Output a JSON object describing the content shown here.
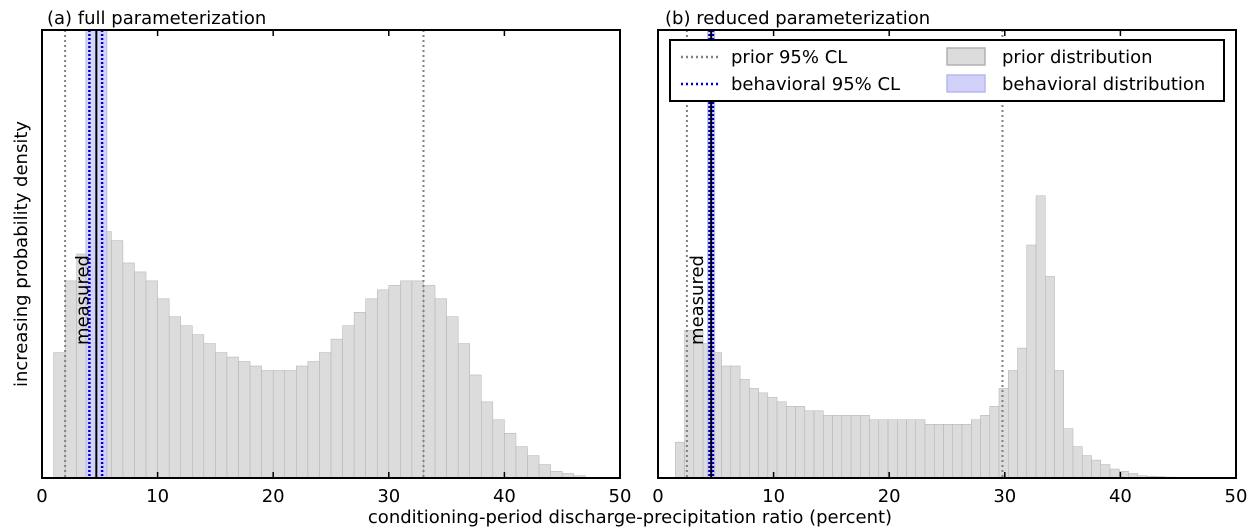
{
  "figure": {
    "ylabel": "increasing probability density",
    "xlabel": "conditioning-period discharge-precipitation ratio (percent)"
  },
  "legend": {
    "items": [
      {
        "label": "prior 95% CL",
        "kind": "line",
        "color": "#808080",
        "style": "dotted"
      },
      {
        "label": "prior distribution",
        "kind": "patch",
        "color": "#dcdcdc",
        "edge": "#b0b0b0"
      },
      {
        "label": "behavioral 95% CL",
        "kind": "line",
        "color": "#0000cc",
        "style": "dotted"
      },
      {
        "label": "behavioral distribution",
        "kind": "patch",
        "color": "#d0d0f8",
        "edge": "#b8b8f0"
      }
    ]
  },
  "chart_data": [
    {
      "type": "bar",
      "title": "(a) full parameterization",
      "xlim": [
        0,
        50
      ],
      "xticks": [
        0,
        10,
        20,
        30,
        40,
        50
      ],
      "ylim": [
        0,
        1.0
      ],
      "bin_start": 1,
      "bin_width": 1,
      "prior_values": [
        0.28,
        0.44,
        0.5,
        0.53,
        0.55,
        0.53,
        0.48,
        0.46,
        0.44,
        0.4,
        0.36,
        0.34,
        0.32,
        0.3,
        0.28,
        0.27,
        0.26,
        0.25,
        0.24,
        0.24,
        0.24,
        0.25,
        0.26,
        0.28,
        0.31,
        0.34,
        0.37,
        0.4,
        0.42,
        0.43,
        0.44,
        0.44,
        0.43,
        0.4,
        0.36,
        0.3,
        0.23,
        0.17,
        0.13,
        0.1,
        0.07,
        0.05,
        0.03,
        0.015,
        0.01,
        0.005
      ],
      "prior_cl": [
        2.0,
        33.0
      ],
      "behavioral_band": [
        3.8,
        5.6
      ],
      "behavioral_cl": [
        4.1,
        5.2
      ],
      "measured": 4.7,
      "measured_label": "measured"
    },
    {
      "type": "bar",
      "title": "(b) reduced parameterization",
      "xlim": [
        0,
        50
      ],
      "xticks": [
        0,
        10,
        20,
        30,
        40,
        50
      ],
      "ylim": [
        0,
        1.0
      ],
      "bin_start": 1.5,
      "bin_width": 0.8,
      "prior_values": [
        0.08,
        0.33,
        0.33,
        0.3,
        0.28,
        0.25,
        0.25,
        0.22,
        0.2,
        0.19,
        0.18,
        0.17,
        0.16,
        0.16,
        0.15,
        0.15,
        0.14,
        0.14,
        0.14,
        0.14,
        0.14,
        0.13,
        0.13,
        0.13,
        0.13,
        0.13,
        0.13,
        0.12,
        0.12,
        0.12,
        0.12,
        0.12,
        0.13,
        0.14,
        0.16,
        0.2,
        0.24,
        0.29,
        0.52,
        0.63,
        0.45,
        0.24,
        0.11,
        0.07,
        0.05,
        0.04,
        0.03,
        0.02,
        0.015,
        0.01,
        0.005,
        0.004,
        0.003,
        0.002,
        0.001
      ],
      "prior_cl": [
        2.5,
        29.8
      ],
      "behavioral_band": [
        4.3,
        4.9
      ],
      "behavioral_cl": [
        4.45,
        4.75
      ],
      "measured": 4.6,
      "measured_label": "measured"
    }
  ]
}
